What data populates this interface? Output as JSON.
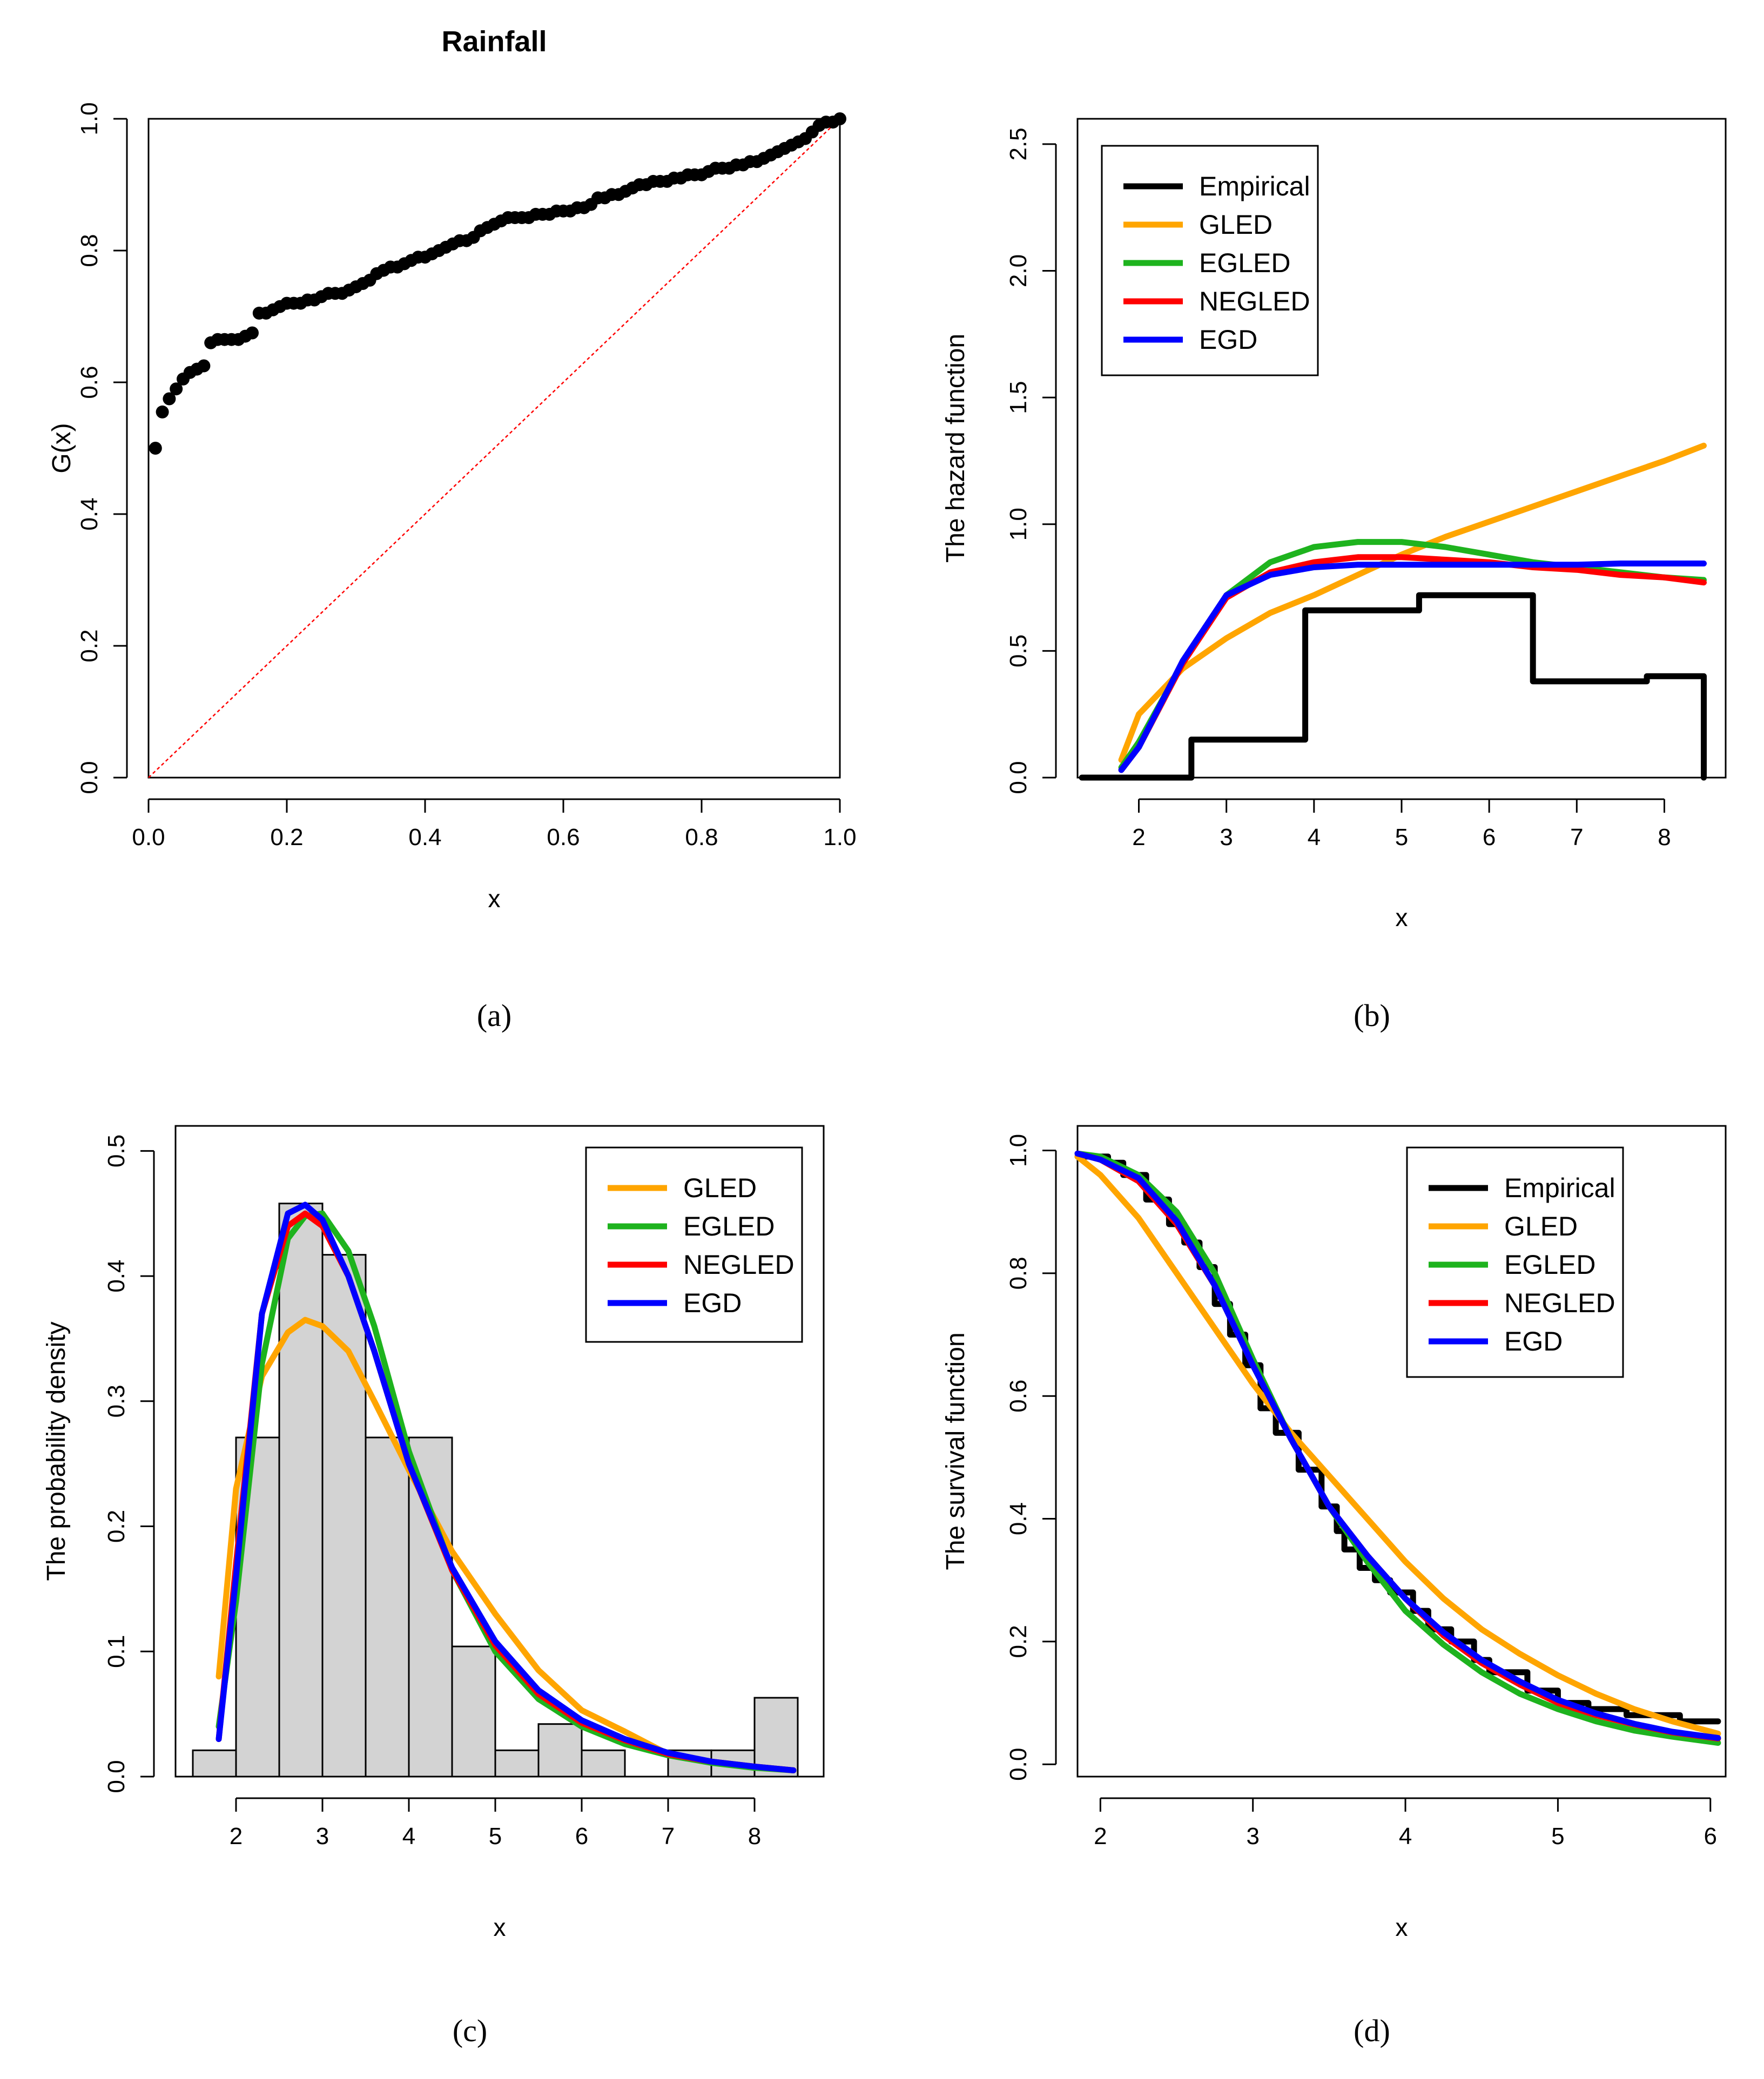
{
  "colors": {
    "black": "#000000",
    "orange": "#FFA500",
    "green": "#1EB31E",
    "red": "#FF0000",
    "blue": "#0000FF",
    "bar_fill": "#D3D3D3",
    "ref_line": "#FF0000"
  },
  "chart_data": [
    {
      "id": "a",
      "type": "scatter",
      "title": "Rainfall",
      "xlabel": "x",
      "ylabel": "G(x)",
      "caption": "(a)",
      "xlim": [
        0,
        1
      ],
      "ylim": [
        0,
        1
      ],
      "xticks": [
        "0.0",
        "0.2",
        "0.4",
        "0.6",
        "0.8",
        "1.0"
      ],
      "yticks": [
        "0.0",
        "0.2",
        "0.4",
        "0.6",
        "0.8",
        "1.0"
      ],
      "reference_line": [
        [
          0,
          0
        ],
        [
          1,
          1
        ]
      ],
      "series": [
        {
          "name": "points",
          "x": [
            0.01,
            0.02,
            0.03,
            0.04,
            0.05,
            0.06,
            0.07,
            0.08,
            0.09,
            0.1,
            0.11,
            0.12,
            0.13,
            0.14,
            0.15,
            0.16,
            0.17,
            0.18,
            0.19,
            0.2,
            0.21,
            0.22,
            0.23,
            0.24,
            0.25,
            0.26,
            0.27,
            0.28,
            0.29,
            0.3,
            0.31,
            0.32,
            0.33,
            0.34,
            0.35,
            0.36,
            0.37,
            0.38,
            0.39,
            0.4,
            0.41,
            0.42,
            0.43,
            0.44,
            0.45,
            0.46,
            0.47,
            0.48,
            0.49,
            0.5,
            0.51,
            0.52,
            0.53,
            0.54,
            0.55,
            0.56,
            0.57,
            0.58,
            0.59,
            0.6,
            0.61,
            0.62,
            0.63,
            0.64,
            0.65,
            0.66,
            0.67,
            0.68,
            0.69,
            0.7,
            0.71,
            0.72,
            0.73,
            0.74,
            0.75,
            0.76,
            0.77,
            0.78,
            0.79,
            0.8,
            0.81,
            0.82,
            0.83,
            0.84,
            0.85,
            0.86,
            0.87,
            0.88,
            0.89,
            0.9,
            0.91,
            0.92,
            0.93,
            0.94,
            0.95,
            0.96,
            0.97,
            0.98,
            0.99,
            1.0
          ],
          "y": [
            0.5,
            0.555,
            0.575,
            0.59,
            0.605,
            0.615,
            0.62,
            0.625,
            0.66,
            0.665,
            0.665,
            0.665,
            0.665,
            0.67,
            0.675,
            0.705,
            0.705,
            0.71,
            0.715,
            0.72,
            0.72,
            0.72,
            0.725,
            0.725,
            0.73,
            0.735,
            0.735,
            0.735,
            0.74,
            0.745,
            0.75,
            0.755,
            0.765,
            0.77,
            0.775,
            0.775,
            0.78,
            0.785,
            0.79,
            0.79,
            0.795,
            0.8,
            0.805,
            0.81,
            0.815,
            0.815,
            0.82,
            0.83,
            0.835,
            0.84,
            0.845,
            0.85,
            0.85,
            0.85,
            0.85,
            0.855,
            0.855,
            0.855,
            0.86,
            0.86,
            0.86,
            0.865,
            0.865,
            0.87,
            0.88,
            0.88,
            0.885,
            0.885,
            0.89,
            0.895,
            0.9,
            0.9,
            0.905,
            0.905,
            0.905,
            0.91,
            0.91,
            0.915,
            0.915,
            0.915,
            0.92,
            0.925,
            0.925,
            0.925,
            0.93,
            0.93,
            0.935,
            0.935,
            0.94,
            0.945,
            0.95,
            0.955,
            0.96,
            0.965,
            0.97,
            0.98,
            0.99,
            0.995,
            0.995,
            1.0
          ]
        }
      ]
    },
    {
      "id": "b",
      "type": "line",
      "title": "",
      "xlabel": "x",
      "ylabel": "The hazard function",
      "caption": "(b)",
      "xlim": [
        1.3,
        8.7
      ],
      "ylim": [
        0,
        2.6
      ],
      "xticks": [
        "2",
        "3",
        "4",
        "5",
        "6",
        "7",
        "8"
      ],
      "yticks": [
        "0.0",
        "0.5",
        "1.0",
        "1.5",
        "2.0",
        "2.5"
      ],
      "legend": [
        "Empirical",
        "GLED",
        "EGLED",
        "NEGLED",
        "EGD"
      ],
      "legend_position": "top-left",
      "series": [
        {
          "name": "Empirical",
          "x": [
            1.35,
            2.6,
            2.6,
            3.9,
            3.9,
            5.2,
            5.2,
            6.5,
            6.5,
            7.8,
            7.8,
            8.45,
            8.45
          ],
          "y": [
            0,
            0,
            0.15,
            0.15,
            0.66,
            0.66,
            0.72,
            0.72,
            0.38,
            0.38,
            0.4,
            0.4,
            0
          ]
        },
        {
          "name": "GLED",
          "x": [
            1.8,
            2.0,
            2.5,
            3.0,
            3.5,
            4.0,
            4.5,
            5.0,
            5.5,
            6.0,
            6.5,
            7.0,
            7.5,
            8.0,
            8.45
          ],
          "y": [
            0.07,
            0.25,
            0.43,
            0.55,
            0.65,
            0.72,
            0.8,
            0.88,
            0.95,
            1.01,
            1.07,
            1.13,
            1.19,
            1.25,
            1.31
          ]
        },
        {
          "name": "EGLED",
          "x": [
            1.8,
            2.0,
            2.5,
            3.0,
            3.5,
            4.0,
            4.5,
            5.0,
            5.5,
            6.0,
            6.5,
            7.0,
            7.5,
            8.0,
            8.45
          ],
          "y": [
            0.04,
            0.14,
            0.45,
            0.72,
            0.85,
            0.91,
            0.93,
            0.93,
            0.91,
            0.88,
            0.85,
            0.83,
            0.81,
            0.79,
            0.78
          ]
        },
        {
          "name": "NEGLED",
          "x": [
            1.8,
            2.0,
            2.5,
            3.0,
            3.5,
            4.0,
            4.5,
            5.0,
            5.5,
            6.0,
            6.5,
            7.0,
            7.5,
            8.0,
            8.45
          ],
          "y": [
            0.03,
            0.12,
            0.45,
            0.71,
            0.81,
            0.85,
            0.87,
            0.87,
            0.86,
            0.85,
            0.83,
            0.82,
            0.8,
            0.79,
            0.77
          ]
        },
        {
          "name": "EGD",
          "x": [
            1.8,
            2.0,
            2.5,
            3.0,
            3.5,
            4.0,
            4.5,
            5.0,
            5.5,
            6.0,
            6.5,
            7.0,
            7.5,
            8.0,
            8.45
          ],
          "y": [
            0.03,
            0.12,
            0.46,
            0.72,
            0.8,
            0.83,
            0.84,
            0.84,
            0.84,
            0.84,
            0.84,
            0.84,
            0.845,
            0.845,
            0.845
          ]
        }
      ]
    },
    {
      "id": "c",
      "type": "bar",
      "title": "",
      "xlabel": "x",
      "ylabel": "The probability density",
      "caption": "(c)",
      "xlim": [
        1.3,
        8.8
      ],
      "ylim": [
        0,
        0.52
      ],
      "xticks": [
        "2",
        "3",
        "4",
        "5",
        "6",
        "7",
        "8"
      ],
      "yticks": [
        "0.0",
        "0.1",
        "0.2",
        "0.3",
        "0.4",
        "0.5"
      ],
      "legend": [
        "GLED",
        "EGLED",
        "NEGLED",
        "EGD"
      ],
      "legend_position": "top-right",
      "histogram": {
        "edges": [
          1.5,
          2.0,
          2.5,
          3.0,
          3.5,
          4.0,
          4.5,
          5.0,
          5.5,
          6.0,
          6.5,
          7.0,
          7.5,
          8.0,
          8.5
        ],
        "values": [
          0.021,
          0.271,
          0.458,
          0.417,
          0.271,
          0.271,
          0.104,
          0.021,
          0.042,
          0.021,
          0,
          0.021,
          0.021,
          0.063
        ]
      },
      "series": [
        {
          "name": "GLED",
          "x": [
            1.8,
            2.0,
            2.3,
            2.6,
            2.8,
            3.0,
            3.3,
            3.6,
            4.0,
            4.5,
            5.0,
            5.5,
            6.0,
            6.5,
            7.0,
            7.5,
            8.0,
            8.45
          ],
          "y": [
            0.08,
            0.23,
            0.32,
            0.355,
            0.365,
            0.36,
            0.34,
            0.3,
            0.245,
            0.18,
            0.13,
            0.085,
            0.053,
            0.036,
            0.018,
            0.012,
            0.008,
            0.005
          ]
        },
        {
          "name": "EGLED",
          "x": [
            1.8,
            2.0,
            2.3,
            2.6,
            2.8,
            3.0,
            3.3,
            3.6,
            4.0,
            4.5,
            5.0,
            5.5,
            6.0,
            6.5,
            7.0,
            7.5,
            8.0,
            8.45
          ],
          "y": [
            0.04,
            0.14,
            0.33,
            0.43,
            0.448,
            0.45,
            0.42,
            0.36,
            0.26,
            0.165,
            0.1,
            0.062,
            0.04,
            0.026,
            0.017,
            0.011,
            0.007,
            0.005
          ]
        },
        {
          "name": "NEGLED",
          "x": [
            1.8,
            2.0,
            2.3,
            2.6,
            2.8,
            3.0,
            3.3,
            3.6,
            4.0,
            4.5,
            5.0,
            5.5,
            6.0,
            6.5,
            7.0,
            7.5,
            8.0,
            8.45
          ],
          "y": [
            0.03,
            0.17,
            0.37,
            0.44,
            0.45,
            0.44,
            0.4,
            0.34,
            0.25,
            0.165,
            0.105,
            0.066,
            0.043,
            0.029,
            0.018,
            0.012,
            0.008,
            0.005
          ]
        },
        {
          "name": "EGD",
          "x": [
            1.8,
            2.0,
            2.3,
            2.6,
            2.8,
            3.0,
            3.3,
            3.6,
            4.0,
            4.5,
            5.0,
            5.5,
            6.0,
            6.5,
            7.0,
            7.5,
            8.0,
            8.45
          ],
          "y": [
            0.03,
            0.16,
            0.37,
            0.45,
            0.457,
            0.445,
            0.4,
            0.34,
            0.25,
            0.167,
            0.108,
            0.069,
            0.045,
            0.03,
            0.019,
            0.012,
            0.008,
            0.005
          ]
        }
      ]
    },
    {
      "id": "d",
      "type": "line",
      "title": "",
      "xlabel": "x",
      "ylabel": "The survival function",
      "caption": "(d)",
      "xlim": [
        1.85,
        6.1
      ],
      "ylim": [
        -0.02,
        1.04
      ],
      "xticks": [
        "2",
        "3",
        "4",
        "5",
        "6"
      ],
      "yticks": [
        "0.0",
        "0.2",
        "0.4",
        "0.6",
        "0.8",
        "1.0"
      ],
      "legend": [
        "Empirical",
        "GLED",
        "EGLED",
        "NEGLED",
        "EGD"
      ],
      "legend_position": "top-right",
      "series": [
        {
          "name": "Empirical",
          "x": [
            1.85,
            2.05,
            2.05,
            2.15,
            2.15,
            2.3,
            2.3,
            2.45,
            2.45,
            2.55,
            2.55,
            2.65,
            2.65,
            2.75,
            2.75,
            2.85,
            2.85,
            2.95,
            2.95,
            3.05,
            3.05,
            3.15,
            3.15,
            3.3,
            3.3,
            3.45,
            3.45,
            3.55,
            3.55,
            3.6,
            3.6,
            3.7,
            3.7,
            3.8,
            3.8,
            3.9,
            3.9,
            4.05,
            4.05,
            4.15,
            4.15,
            4.3,
            4.3,
            4.45,
            4.45,
            4.55,
            4.55,
            4.8,
            4.8,
            5.0,
            5.0,
            5.2,
            5.2,
            5.45,
            5.45,
            5.8,
            5.8,
            6.05
          ],
          "y": [
            0.99,
            0.99,
            0.98,
            0.98,
            0.96,
            0.96,
            0.92,
            0.92,
            0.88,
            0.88,
            0.85,
            0.85,
            0.81,
            0.81,
            0.75,
            0.75,
            0.7,
            0.7,
            0.65,
            0.65,
            0.58,
            0.58,
            0.54,
            0.54,
            0.48,
            0.48,
            0.42,
            0.42,
            0.38,
            0.38,
            0.35,
            0.35,
            0.32,
            0.32,
            0.3,
            0.3,
            0.28,
            0.28,
            0.25,
            0.25,
            0.22,
            0.22,
            0.2,
            0.2,
            0.17,
            0.17,
            0.15,
            0.15,
            0.12,
            0.12,
            0.1,
            0.1,
            0.09,
            0.09,
            0.08,
            0.08,
            0.07,
            0.07
          ]
        },
        {
          "name": "GLED",
          "x": [
            1.85,
            2.0,
            2.25,
            2.5,
            2.75,
            3.0,
            3.25,
            3.5,
            3.75,
            4.0,
            4.25,
            4.5,
            4.75,
            5.0,
            5.25,
            5.5,
            5.75,
            6.05
          ],
          "y": [
            0.99,
            0.96,
            0.89,
            0.8,
            0.71,
            0.62,
            0.54,
            0.47,
            0.4,
            0.33,
            0.27,
            0.22,
            0.18,
            0.145,
            0.115,
            0.09,
            0.07,
            0.05
          ]
        },
        {
          "name": "EGLED",
          "x": [
            1.85,
            2.0,
            2.25,
            2.5,
            2.75,
            3.0,
            3.25,
            3.5,
            3.75,
            4.0,
            4.25,
            4.5,
            4.75,
            5.0,
            5.25,
            5.5,
            5.75,
            6.05
          ],
          "y": [
            0.995,
            0.99,
            0.96,
            0.9,
            0.8,
            0.66,
            0.53,
            0.42,
            0.33,
            0.25,
            0.195,
            0.15,
            0.115,
            0.09,
            0.07,
            0.055,
            0.045,
            0.035
          ]
        },
        {
          "name": "NEGLED",
          "x": [
            1.85,
            2.0,
            2.25,
            2.5,
            2.75,
            3.0,
            3.25,
            3.5,
            3.75,
            4.0,
            4.25,
            4.5,
            4.75,
            5.0,
            5.25,
            5.5,
            5.75,
            6.05
          ],
          "y": [
            0.995,
            0.985,
            0.95,
            0.88,
            0.78,
            0.65,
            0.53,
            0.42,
            0.34,
            0.27,
            0.21,
            0.165,
            0.13,
            0.1,
            0.08,
            0.065,
            0.052,
            0.042
          ]
        },
        {
          "name": "EGD",
          "x": [
            1.85,
            2.0,
            2.25,
            2.5,
            2.75,
            3.0,
            3.25,
            3.5,
            3.75,
            4.0,
            4.25,
            4.5,
            4.75,
            5.0,
            5.25,
            5.5,
            5.75,
            6.05
          ],
          "y": [
            0.995,
            0.985,
            0.955,
            0.885,
            0.78,
            0.65,
            0.53,
            0.42,
            0.34,
            0.27,
            0.215,
            0.17,
            0.135,
            0.105,
            0.083,
            0.066,
            0.053,
            0.043
          ]
        }
      ]
    }
  ]
}
